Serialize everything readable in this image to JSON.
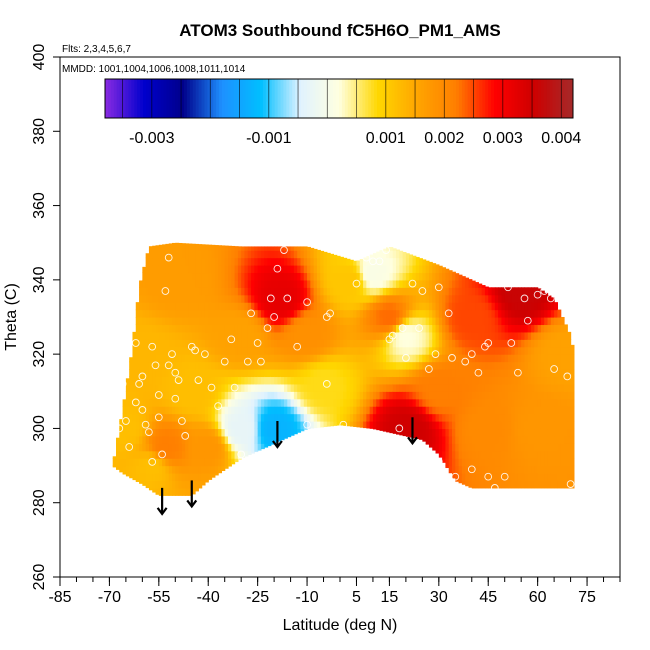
{
  "chart_data": {
    "type": "heatmap",
    "title": "ATOM3 Southbound fC5H6O_PM1_AMS",
    "annotations": {
      "flights": "Flts: 2,3,4,5,6,7",
      "dates": "MMDD: 1001,1004,1006,1008,1011,1014"
    },
    "xlabel": "Latitude (deg N)",
    "ylabel": "Theta (C)",
    "xlim": [
      -85,
      85
    ],
    "ylim": [
      260,
      400
    ],
    "x_ticks": [
      -85,
      -70,
      -55,
      -40,
      -25,
      -10,
      5,
      15,
      30,
      45,
      60,
      75
    ],
    "x_tick_labels": [
      "-85",
      "-70",
      "-55",
      "-40",
      "-25",
      "-10",
      "5",
      "15",
      "30",
      "45",
      "60",
      "75"
    ],
    "x_minor_step": 5,
    "y_ticks": [
      260,
      280,
      300,
      320,
      340,
      360,
      380,
      400
    ],
    "y_tick_labels": [
      "260",
      "280",
      "300",
      "320",
      "340",
      "360",
      "380",
      "400"
    ],
    "colorbar": {
      "range": [
        -0.0038,
        0.0042
      ],
      "tick_values": [
        -0.003,
        -0.001,
        0.001,
        0.002,
        0.003,
        0.004
      ],
      "tick_labels": [
        "-0.003",
        "-0.001",
        "0.001",
        "0.002",
        "0.003",
        "0.004"
      ],
      "colors": [
        "#8a2be2",
        "#0000cd",
        "#00008b",
        "#1e90ff",
        "#00bfff",
        "#e0f2ff",
        "#ffffe0",
        "#ffd700",
        "#ffa500",
        "#ff7f00",
        "#ff0000",
        "#cd0000",
        "#a52a2a"
      ]
    },
    "grid": false,
    "legend": "top colorbar",
    "field_upper_boundary": [
      [
        -69,
        290
      ],
      [
        -66,
        305
      ],
      [
        -63,
        322
      ],
      [
        -61,
        338
      ],
      [
        -58,
        349
      ],
      [
        -50,
        350
      ],
      [
        -30,
        349
      ],
      [
        -10,
        349
      ],
      [
        5,
        345
      ],
      [
        15,
        349
      ],
      [
        30,
        344
      ],
      [
        45,
        338
      ],
      [
        60,
        338
      ],
      [
        65,
        335
      ],
      [
        70,
        325
      ],
      [
        71,
        320
      ],
      [
        71,
        284
      ]
    ],
    "field_lower_boundary": [
      [
        -69,
        290
      ],
      [
        -66,
        288
      ],
      [
        -60,
        285
      ],
      [
        -55,
        282
      ],
      [
        -45,
        282
      ],
      [
        -40,
        286
      ],
      [
        -30,
        292
      ],
      [
        -20,
        296
      ],
      [
        -10,
        300
      ],
      [
        0,
        301
      ],
      [
        10,
        300
      ],
      [
        20,
        298
      ],
      [
        25,
        297
      ],
      [
        30,
        293
      ],
      [
        35,
        286
      ],
      [
        40,
        284
      ],
      [
        50,
        284
      ],
      [
        60,
        284
      ],
      [
        71,
        284
      ]
    ],
    "field_samples": [
      {
        "x": -65,
        "y": 300,
        "v": 0.0012
      },
      {
        "x": -60,
        "y": 320,
        "v": 0.0013
      },
      {
        "x": -57,
        "y": 290,
        "v": 0.0012
      },
      {
        "x": -53,
        "y": 295,
        "v": 0.0022
      },
      {
        "x": -50,
        "y": 340,
        "v": 0.0017
      },
      {
        "x": -45,
        "y": 310,
        "v": 0.0012
      },
      {
        "x": -40,
        "y": 295,
        "v": 0.0018
      },
      {
        "x": -30,
        "y": 325,
        "v": 0.0016
      },
      {
        "x": -30,
        "y": 300,
        "v": -0.0003
      },
      {
        "x": -20,
        "y": 300,
        "v": -0.0013
      },
      {
        "x": -18,
        "y": 335,
        "v": 0.0032
      },
      {
        "x": -10,
        "y": 325,
        "v": 0.0019
      },
      {
        "x": -5,
        "y": 312,
        "v": 0.0008
      },
      {
        "x": 3,
        "y": 340,
        "v": 0.0011
      },
      {
        "x": 10,
        "y": 342,
        "v": 0.0001
      },
      {
        "x": 15,
        "y": 330,
        "v": 0.0023
      },
      {
        "x": 20,
        "y": 325,
        "v": 0.0002
      },
      {
        "x": 21,
        "y": 300,
        "v": 0.0035
      },
      {
        "x": 30,
        "y": 310,
        "v": 0.0022
      },
      {
        "x": 40,
        "y": 330,
        "v": 0.0025
      },
      {
        "x": 45,
        "y": 300,
        "v": 0.002
      },
      {
        "x": 55,
        "y": 337,
        "v": 0.0036
      },
      {
        "x": 60,
        "y": 300,
        "v": 0.0018
      },
      {
        "x": 68,
        "y": 320,
        "v": 0.0016
      }
    ],
    "sample_points": [
      [
        -80,
        308
      ],
      [
        -76,
        305
      ],
      [
        -73,
        300
      ],
      [
        -72,
        296
      ],
      [
        -71,
        292
      ],
      [
        -70,
        289
      ],
      [
        -67,
        300
      ],
      [
        -67,
        317
      ],
      [
        -66,
        312
      ],
      [
        -65,
        302
      ],
      [
        -64,
        295
      ],
      [
        -62,
        323
      ],
      [
        -62,
        307
      ],
      [
        -61,
        312
      ],
      [
        -60,
        314
      ],
      [
        -60,
        305
      ],
      [
        -59,
        301
      ],
      [
        -58,
        299
      ],
      [
        -57,
        291
      ],
      [
        -57,
        322
      ],
      [
        -56,
        317
      ],
      [
        -55,
        309
      ],
      [
        -55,
        303
      ],
      [
        -54,
        293
      ],
      [
        -53,
        337
      ],
      [
        -52,
        346
      ],
      [
        -52,
        317
      ],
      [
        -51,
        320
      ],
      [
        -50,
        315
      ],
      [
        -50,
        308
      ],
      [
        -49,
        313
      ],
      [
        -48,
        302
      ],
      [
        -47,
        298
      ],
      [
        -45,
        322
      ],
      [
        -44,
        321
      ],
      [
        -43,
        313
      ],
      [
        -41,
        320
      ],
      [
        -39,
        311
      ],
      [
        -37,
        306
      ],
      [
        -35,
        318
      ],
      [
        -33,
        324
      ],
      [
        -32,
        311
      ],
      [
        -30,
        293
      ],
      [
        -28,
        318
      ],
      [
        -27,
        331
      ],
      [
        -25,
        323
      ],
      [
        -24,
        318
      ],
      [
        -22,
        327
      ],
      [
        -21,
        335
      ],
      [
        -20,
        330
      ],
      [
        -19,
        343
      ],
      [
        -17,
        348
      ],
      [
        -16,
        335
      ],
      [
        -13,
        322
      ],
      [
        -10,
        334
      ],
      [
        -10,
        301
      ],
      [
        -4,
        312
      ],
      [
        -4,
        330
      ],
      [
        -3,
        331
      ],
      [
        1,
        301
      ],
      [
        5,
        339
      ],
      [
        8,
        346
      ],
      [
        10,
        345
      ],
      [
        12,
        345
      ],
      [
        14,
        348
      ],
      [
        15,
        324
      ],
      [
        16,
        325
      ],
      [
        18,
        300
      ],
      [
        19,
        327
      ],
      [
        20,
        319
      ],
      [
        22,
        339
      ],
      [
        24,
        327
      ],
      [
        25,
        337
      ],
      [
        27,
        316
      ],
      [
        29,
        320
      ],
      [
        30,
        338
      ],
      [
        33,
        331
      ],
      [
        34,
        319
      ],
      [
        38,
        318
      ],
      [
        40,
        320
      ],
      [
        42,
        315
      ],
      [
        44,
        322
      ],
      [
        45,
        323
      ],
      [
        47,
        284
      ],
      [
        51,
        338
      ],
      [
        52,
        323
      ],
      [
        54,
        315
      ],
      [
        56,
        335
      ],
      [
        57,
        329
      ],
      [
        60,
        336
      ],
      [
        62,
        337
      ],
      [
        64,
        335
      ],
      [
        65,
        316
      ],
      [
        67,
        337
      ],
      [
        69,
        314
      ],
      [
        70,
        285
      ],
      [
        30,
        291
      ],
      [
        35,
        287
      ],
      [
        40,
        289
      ],
      [
        45,
        287
      ],
      [
        50,
        287
      ]
    ],
    "arrows": [
      {
        "x": -54,
        "y_from": 284,
        "y_to": 277
      },
      {
        "x": -45,
        "y_from": 286,
        "y_to": 279
      },
      {
        "x": -19,
        "y_from": 302,
        "y_to": 295
      },
      {
        "x": 22,
        "y_from": 303,
        "y_to": 296
      }
    ]
  }
}
